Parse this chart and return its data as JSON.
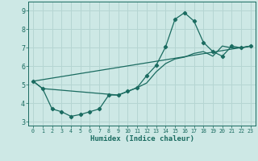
{
  "xlabel": "Humidex (Indice chaleur)",
  "background_color": "#cde8e5",
  "grid_color": "#b5d5d2",
  "line_color": "#1a6b60",
  "xlim": [
    -0.5,
    23.5
  ],
  "ylim": [
    2.8,
    9.5
  ],
  "yticks": [
    3,
    4,
    5,
    6,
    7,
    8,
    9
  ],
  "xticks": [
    0,
    1,
    2,
    3,
    4,
    5,
    6,
    7,
    8,
    9,
    10,
    11,
    12,
    13,
    14,
    15,
    16,
    17,
    18,
    19,
    20,
    21,
    22,
    23
  ],
  "curve1_x": [
    0,
    1,
    2,
    3,
    4,
    5,
    6,
    7,
    8,
    9,
    10,
    11,
    12,
    13,
    14,
    15,
    16,
    17,
    18,
    19,
    20,
    21,
    22,
    23
  ],
  "curve1_y": [
    5.2,
    4.8,
    3.7,
    3.55,
    3.3,
    3.4,
    3.55,
    3.7,
    4.45,
    4.45,
    4.65,
    4.85,
    5.5,
    6.05,
    7.05,
    8.55,
    8.9,
    8.45,
    7.3,
    6.8,
    6.55,
    7.1,
    7.0,
    7.1
  ],
  "curve2_x": [
    0,
    1,
    9,
    10,
    11,
    12,
    13,
    14,
    15,
    16,
    17,
    18,
    19,
    20,
    21,
    22,
    23
  ],
  "curve2_y": [
    5.2,
    4.8,
    4.45,
    4.65,
    4.85,
    5.1,
    5.7,
    6.15,
    6.4,
    6.5,
    6.7,
    6.8,
    6.55,
    7.1,
    7.0,
    7.0,
    7.1
  ],
  "curve3_x": [
    0,
    23
  ],
  "curve3_y": [
    5.2,
    7.1
  ]
}
